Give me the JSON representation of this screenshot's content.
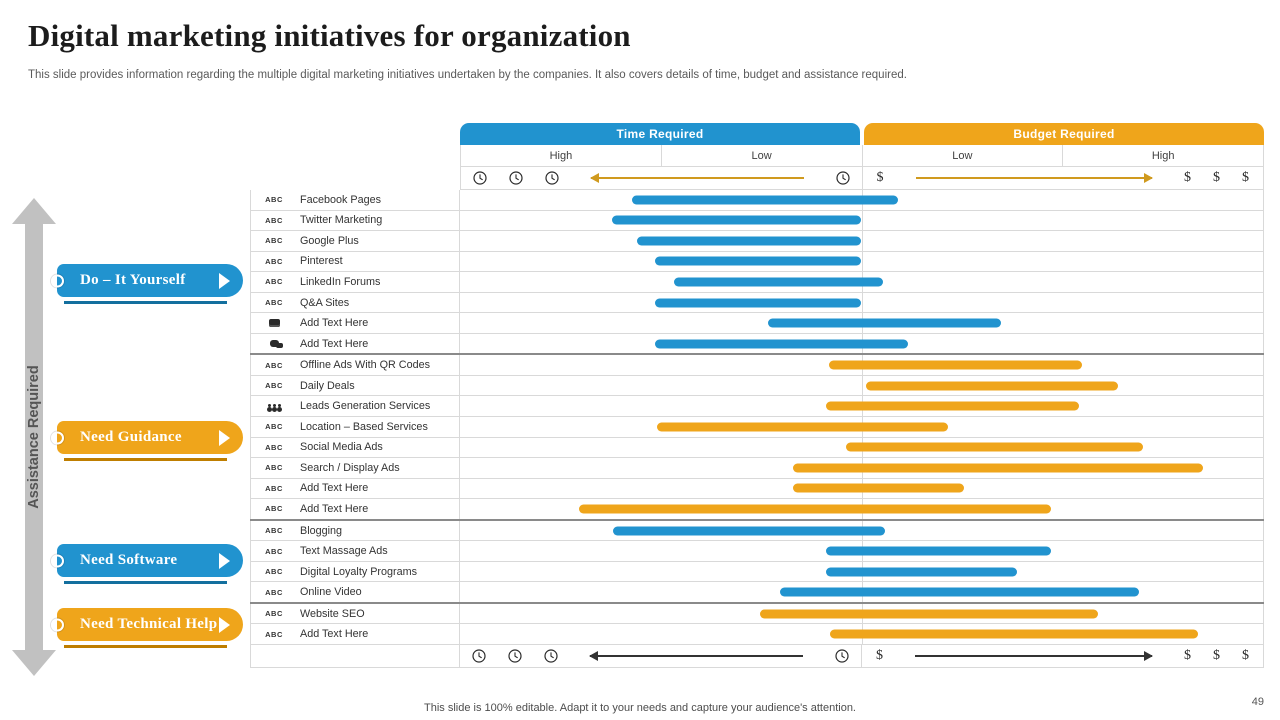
{
  "slide": {
    "title": "Digital marketing initiatives for organization",
    "subtitle": "This slide provides information regarding the multiple digital marketing initiatives undertaken by the companies. It also covers details of time, budget and assistance required.",
    "footer": "This slide is 100% editable. Adapt it to your needs and capture your audience's attention.",
    "page_number": "49"
  },
  "colors": {
    "blue": "#2193CF",
    "orange": "#EFA51B",
    "blue_dark": "#136F9E",
    "orange_dark": "#BF7E00",
    "gold": "#D09A1E",
    "gray_arrow": "#C1C1C1",
    "grid": "#D9D9D9",
    "group_border": "#8A8A8A"
  },
  "assistance_axis": {
    "label": "Assistance Required"
  },
  "icons": {
    "dollar": "$",
    "abc_label": "ABC"
  },
  "legend_pills": [
    {
      "label": "Do – It Yourself",
      "color": "blue"
    },
    {
      "label": "Need Guidance",
      "color": "orange"
    },
    {
      "label": "Need Software",
      "color": "blue"
    },
    {
      "label": "Need Technical Help",
      "color": "orange"
    }
  ],
  "chart_data": {
    "type": "bar",
    "title": "Digital marketing initiatives — time vs budget required",
    "axis_note": "Horizontal stadium bars span a qualitative axis: 0–50% = Time Required (High at left, Low near centre), 50–100% = Budget Required (Low near centre, High at right). start/end are % of full axis width.",
    "legend_position": "left",
    "grid": "row-separators",
    "sections": [
      {
        "label": "Time Required",
        "sub": [
          "High",
          "Low"
        ],
        "color": "#2193CF",
        "axis_icons": "clock",
        "arrow_direction": "left"
      },
      {
        "label": "Budget Required",
        "sub": [
          "Low",
          "High"
        ],
        "color": "#EFA51B",
        "axis_icons": "dollar",
        "arrow_direction": "right"
      }
    ],
    "rows": [
      {
        "icon": "abc",
        "label": "Facebook Pages",
        "group": "Do – It Yourself",
        "color": "blue",
        "start": 21.4,
        "end": 54.5
      },
      {
        "icon": "abc",
        "label": "Twitter Marketing",
        "group": "Do – It Yourself",
        "color": "blue",
        "start": 18.9,
        "end": 50.0
      },
      {
        "icon": "abc",
        "label": "Google Plus",
        "group": "Do – It Yourself",
        "color": "blue",
        "start": 22.0,
        "end": 50.0
      },
      {
        "icon": "abc",
        "label": "Pinterest",
        "group": "Do – It Yourself",
        "color": "blue",
        "start": 24.3,
        "end": 50.0
      },
      {
        "icon": "abc",
        "label": "LinkedIn Forums",
        "group": "Do – It Yourself",
        "color": "blue",
        "start": 26.7,
        "end": 52.7
      },
      {
        "icon": "abc",
        "label": "Q&A  Sites",
        "group": "Do – It Yourself",
        "color": "blue",
        "start": 24.3,
        "end": 50.0
      },
      {
        "icon": "money",
        "label": "Add Text Here",
        "group": "Do – It Yourself",
        "color": "blue",
        "start": 38.3,
        "end": 67.4
      },
      {
        "icon": "chat",
        "label": "Add Text Here",
        "group": "Do – It Yourself",
        "color": "blue",
        "start": 24.3,
        "end": 55.8,
        "group_end": true
      },
      {
        "icon": "abc",
        "label": "Offline Ads  With QR Codes",
        "group": "Need Guidance",
        "color": "orange",
        "start": 46.0,
        "end": 77.4
      },
      {
        "icon": "abc",
        "label": "Daily Deals",
        "group": "Need Guidance",
        "color": "orange",
        "start": 50.5,
        "end": 82.0
      },
      {
        "icon": "people",
        "label": "Leads Generation Services",
        "group": "Need Guidance",
        "color": "orange",
        "start": 45.6,
        "end": 77.1
      },
      {
        "icon": "abc",
        "label": "Location – Based  Services",
        "group": "Need Guidance",
        "color": "orange",
        "start": 24.5,
        "end": 60.8
      },
      {
        "icon": "abc",
        "label": "Social  Media Ads",
        "group": "Need Guidance",
        "color": "orange",
        "start": 48.1,
        "end": 85.1
      },
      {
        "icon": "abc",
        "label": "Search / Display Ads",
        "group": "Need Guidance",
        "color": "orange",
        "start": 41.5,
        "end": 92.5
      },
      {
        "icon": "abc",
        "label": "Add Text Here",
        "group": "Need Guidance",
        "color": "orange",
        "start": 41.5,
        "end": 62.8
      },
      {
        "icon": "abc",
        "label": "Add Text Here",
        "group": "Need Guidance",
        "color": "orange",
        "start": 14.8,
        "end": 73.6,
        "group_end": true
      },
      {
        "icon": "abc",
        "label": "Blogging",
        "group": "Need Software",
        "color": "blue",
        "start": 19.0,
        "end": 52.9
      },
      {
        "icon": "abc",
        "label": "Text  Massage  Ads",
        "group": "Need Software",
        "color": "blue",
        "start": 45.6,
        "end": 73.6
      },
      {
        "icon": "abc",
        "label": "Digital Loyalty Programs",
        "group": "Need Software",
        "color": "blue",
        "start": 45.6,
        "end": 69.4
      },
      {
        "icon": "abc",
        "label": "Online Video",
        "group": "Need Software",
        "color": "blue",
        "start": 39.9,
        "end": 84.6,
        "group_end": true
      },
      {
        "icon": "abc",
        "label": "Website SEO",
        "group": "Need Technical Help",
        "color": "orange",
        "start": 37.4,
        "end": 79.5
      },
      {
        "icon": "abc",
        "label": "Add Text Here",
        "group": "Need Technical Help",
        "color": "orange",
        "start": 46.1,
        "end": 91.9
      }
    ]
  }
}
